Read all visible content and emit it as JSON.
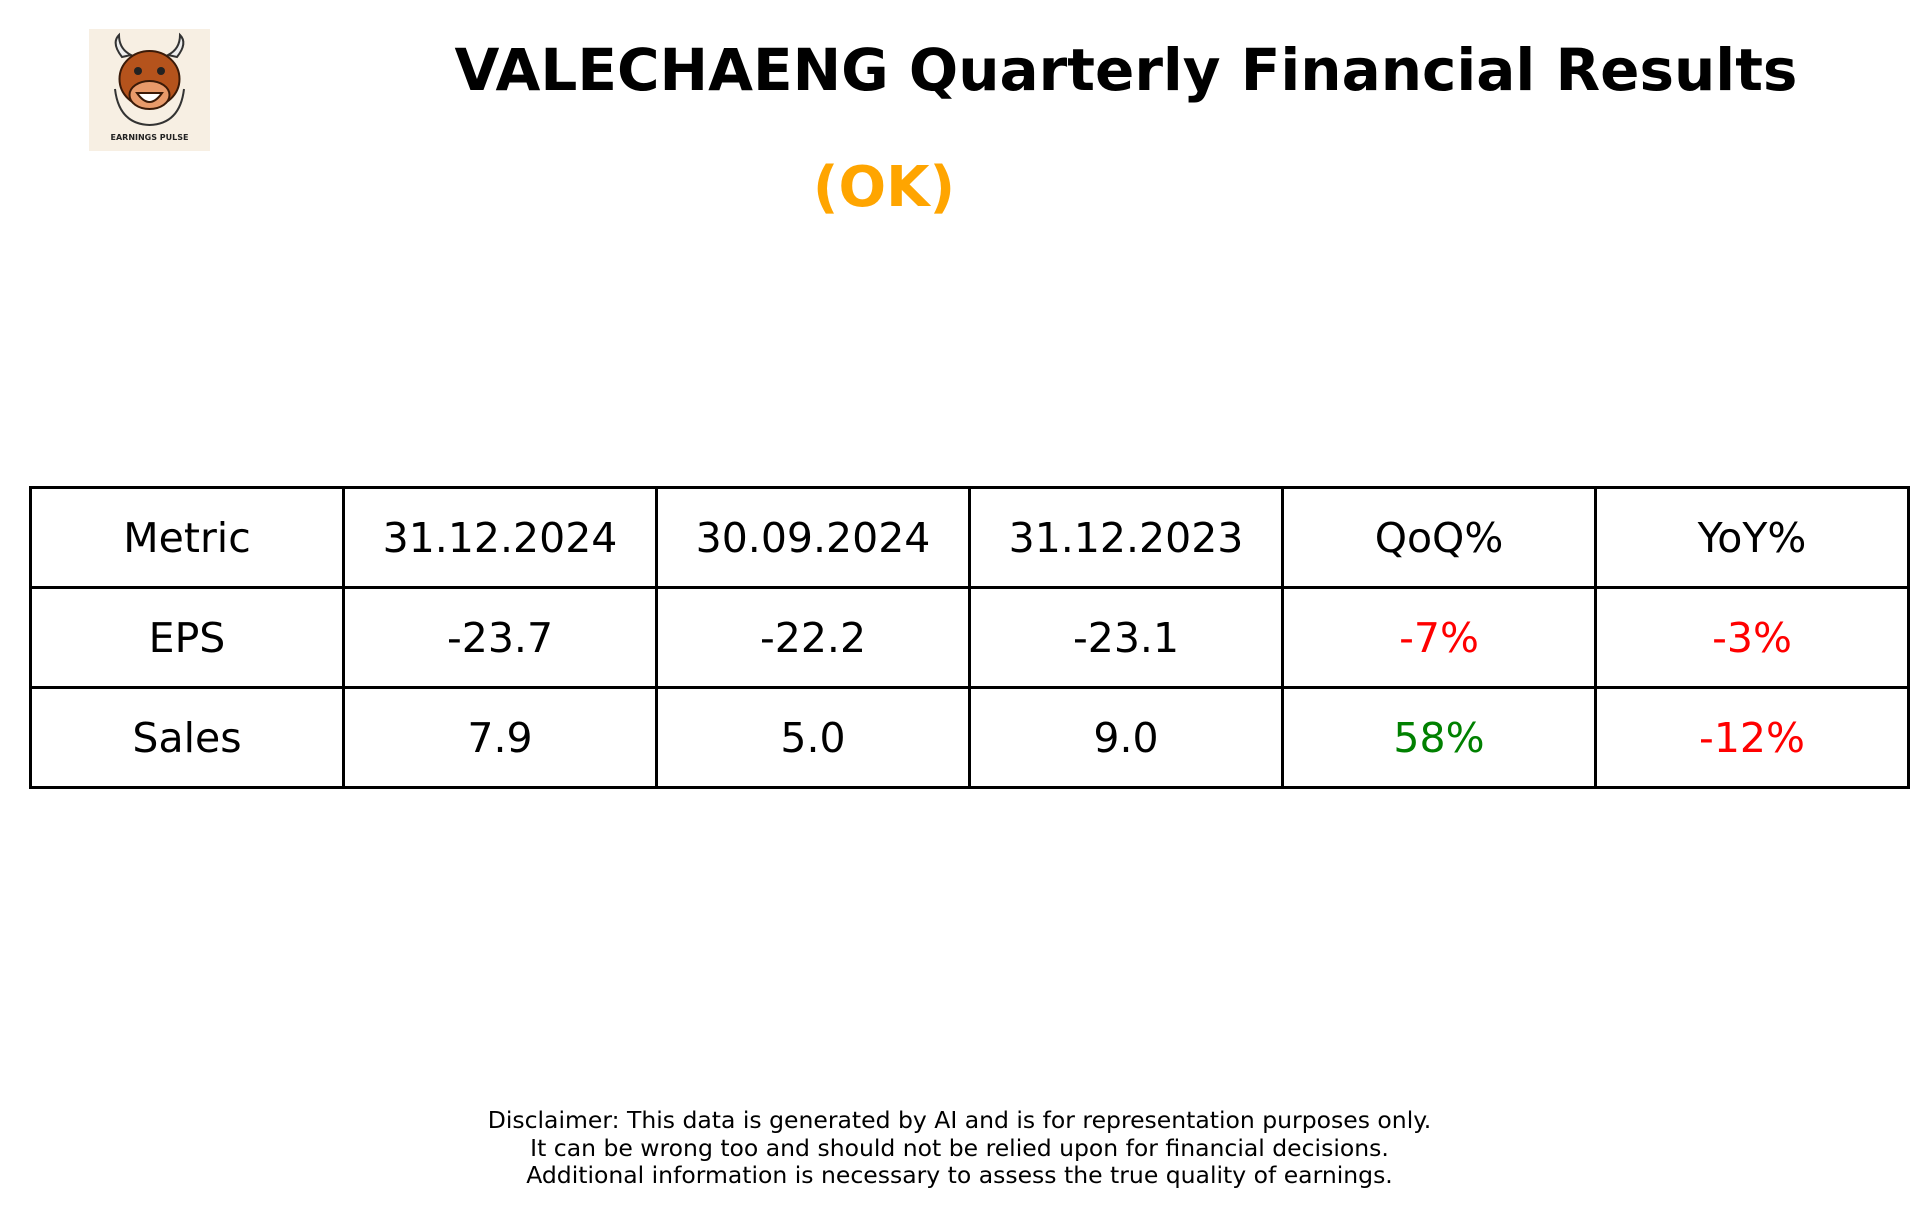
{
  "logo": {
    "text": "EARNINGS PULSE"
  },
  "header": {
    "title": "VALECHAENG Quarterly Financial Results",
    "status": "(OK)"
  },
  "table": {
    "columns": [
      "Metric",
      "31.12.2024",
      "30.09.2024",
      "31.12.2023",
      "QoQ%",
      "YoY%"
    ],
    "rows": [
      [
        "EPS",
        "-23.7",
        "-22.2",
        "-23.1",
        "-7%",
        "-3%"
      ],
      [
        "Sales",
        "7.9",
        "5.0",
        "9.0",
        "58%",
        "-12%"
      ]
    ]
  },
  "disclaimer": [
    "Disclaimer: This data is generated by AI and is for representation purposes only.",
    "It can be wrong too and should not be relied upon for financial decisions.",
    "Additional information is necessary to assess the true quality of earnings."
  ]
}
